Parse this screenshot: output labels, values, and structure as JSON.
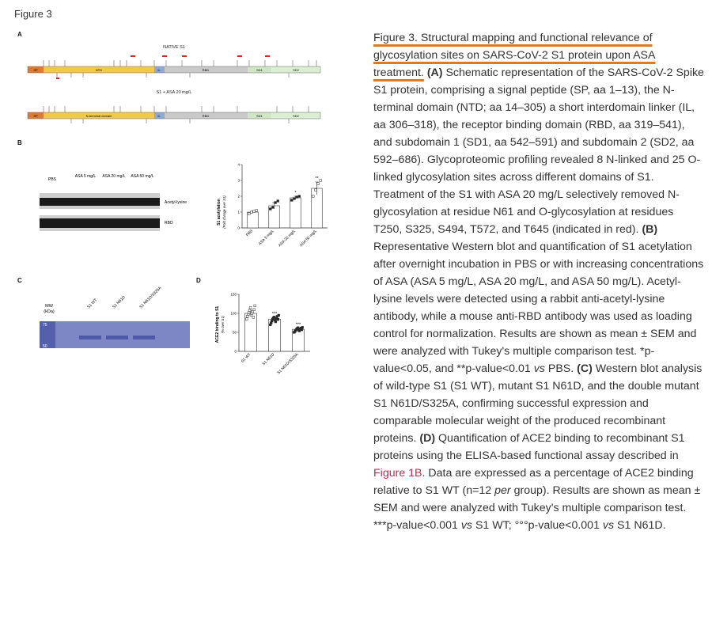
{
  "figure_label": "Figure 3",
  "panels": {
    "A": {
      "letter": "A",
      "native_title": "NATIVE S1",
      "treated_title": "S1 + ASA 20 mg/L",
      "domains_native": [
        "SP",
        "NTD",
        "IL",
        "RBD",
        "SD1",
        "SD2"
      ],
      "domains_treated": [
        "SP",
        "N-terminal domain",
        "IL",
        "RBD",
        "SD1",
        "SD2"
      ]
    },
    "B": {
      "letter": "B",
      "blot_lanes": [
        "PBS",
        "ASA 5 mg/L",
        "ASA 20 mg/L",
        "ASA 50 mg/L"
      ],
      "band_labels": [
        "Acetyl-lysine",
        "RBD"
      ],
      "sig_20": "*",
      "sig_50": "**"
    },
    "C": {
      "letter": "C",
      "mw_label": "MW",
      "mw_unit": "(kDa)",
      "mw_marks": [
        "75",
        "50"
      ],
      "lanes": [
        "S1 WT",
        "S1 N61D",
        "S1 N61D/S325A"
      ]
    },
    "D": {
      "letter": "D",
      "sig_n61d": "***",
      "sig_double": "***"
    }
  },
  "chart_data": [
    {
      "type": "bar",
      "panel": "B",
      "categories": [
        "PBS",
        "ASA 5 mg/L",
        "ASA 20 mg/L",
        "ASA 50 mg/L"
      ],
      "values": [
        1.0,
        1.4,
        1.9,
        2.5
      ],
      "errors": [
        0.05,
        0.2,
        0.1,
        0.4
      ],
      "points": [
        [
          0.9,
          1.0,
          1.05,
          1.1
        ],
        [
          1.2,
          1.3,
          1.6,
          1.7
        ],
        [
          1.75,
          1.85,
          1.95,
          2.0
        ],
        [
          2.0,
          2.4,
          2.8,
          3.0
        ]
      ],
      "ylabel": "S1 acetylation",
      "ylabel_sub": "(Fold change over S1)",
      "ylim": [
        0,
        4
      ],
      "yticks": [
        "0",
        "1",
        "2",
        "3",
        "4"
      ]
    },
    {
      "type": "bar",
      "panel": "D",
      "categories": [
        "S1 WT",
        "S1 N61D",
        "S1 N61D/S325A"
      ],
      "values": [
        100,
        85,
        58
      ],
      "errors": [
        8,
        5,
        3
      ],
      "points": [
        [
          85,
          92,
          98,
          102,
          108,
          115,
          95,
          100,
          105,
          90,
          110,
          120
        ],
        [
          70,
          75,
          80,
          85,
          88,
          90,
          82,
          78,
          86,
          92,
          84,
          95
        ],
        [
          50,
          52,
          55,
          58,
          60,
          62,
          56,
          54,
          59,
          61,
          57,
          63
        ]
      ],
      "ylabel": "ACE2 binding to S1",
      "ylabel_sub": "(% over S1)",
      "ylim": [
        0,
        150
      ],
      "yticks": [
        "0",
        "50",
        "100",
        "150"
      ]
    }
  ],
  "caption": {
    "title": "Figure 3. Structural mapping and functional relevance of glycosylation sites on SARS-CoV-2 S1 protein upon ASA treatment.",
    "a_label": "(A)",
    "a_text": " Schematic representation of the SARS-CoV-2 Spike S1 protein, comprising a signal peptide (SP, aa 1–13), the N-terminal domain (NTD; aa 14–305) a short interdomain linker (IL, aa 306–318), the receptor binding domain (RBD, aa 319–541), and subdomain 1 (SD1, aa 542–591) and subdomain 2 (SD2, aa 592–686). Glycoproteomic profiling revealed 8 N-linked and 25 O-linked glycosylation sites across different domains of S1. Treatment of the S1 with ASA 20 mg/L selectively removed N-glycosylation at residue N61 and O-glycosylation at residues T250, S325, S494, T572, and T645 (indicated in red).",
    "b_label": "(B)",
    "b_text": " Representative Western blot and quantification of S1 acetylation after overnight incubation in PBS or with increasing concentrations of ASA (ASA 5 mg/L, ASA 20 mg/L, and ASA 50 mg/L). Acetyl-lysine levels were detected using a rabbit anti-acetyl-lysine antibody, while a mouse anti-RBD antibody was used as loading control for normalization. Results are shown as mean ± SEM and were analyzed with Tukey's multiple comparison test. *p-value<0.05, and **p-value<0.01 ",
    "b_vs": "vs",
    "b_end": " PBS.",
    "c_label": "(C)",
    "c_text": " Western blot analysis of wild-type S1 (S1 WT), mutant S1 N61D, and the double mutant S1 N61D/S325A, confirming successful expression and comparable molecular weight of the produced recombinant proteins.",
    "d_label": "(D)",
    "d_text": " Quantification of ACE2 binding to recombinant S1 proteins using the ELISA-based functional assay described in ",
    "d_link": "Figure 1B",
    "d_text2": ". Data are expressed as a percentage of ACE2 binding relative to S1 WT (n=12 ",
    "d_per": "per",
    "d_text3": " group). Results are shown as mean ± SEM and were analyzed with Tukey's multiple comparison test. ***p-value<0.001 ",
    "d_vs1": "vs",
    "d_text4": " S1 WT; °°°p-value<0.001 ",
    "d_vs2": "vs",
    "d_text5": " S1 N61D."
  }
}
